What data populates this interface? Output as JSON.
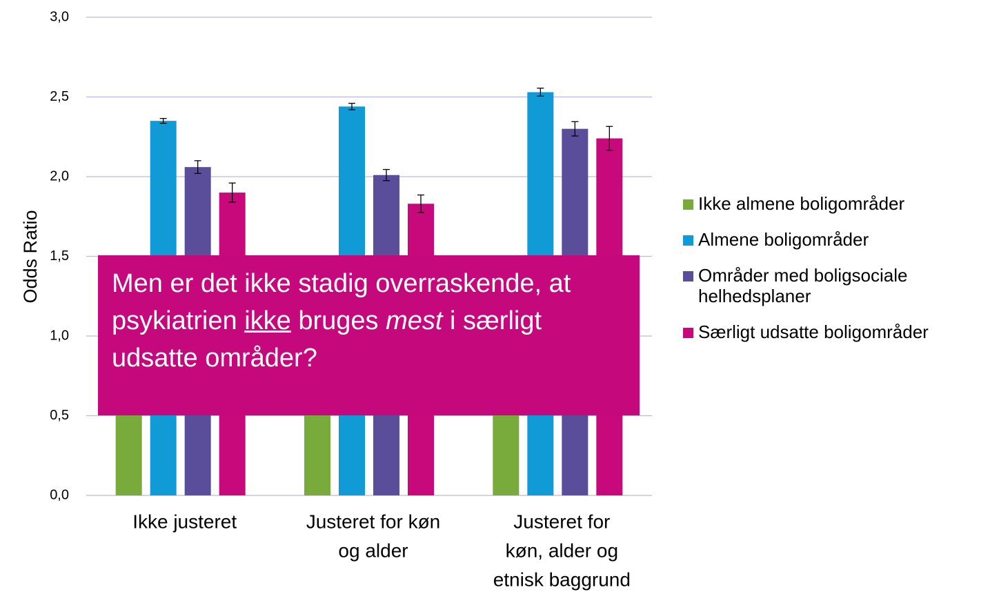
{
  "chart_data": {
    "type": "bar",
    "y_label": "Odds Ratio",
    "categories": [
      [
        "Ikke justeret"
      ],
      [
        "Justeret for køn",
        "og alder"
      ],
      [
        "Justeret for",
        "køn, alder og",
        "etnisk baggrund"
      ]
    ],
    "series": [
      {
        "name": "Ikke almene boligområder",
        "color": "#78ab3c",
        "values": [
          1.0,
          1.0,
          1.0
        ]
      },
      {
        "name": "Almene boligområder",
        "color": "#119bd6",
        "values": [
          2.35,
          2.44,
          2.53
        ],
        "errors": [
          0.015,
          0.02,
          0.025
        ]
      },
      {
        "name": "Områder med boligsociale helhedsplaner",
        "color": "#5a4e9a",
        "values": [
          2.06,
          2.01,
          2.3
        ],
        "errors": [
          0.04,
          0.035,
          0.045
        ]
      },
      {
        "name": "Særligt udsatte boligområder",
        "color": "#c8097c",
        "values": [
          1.9,
          1.83,
          2.24
        ],
        "errors": [
          0.06,
          0.055,
          0.075
        ]
      }
    ],
    "ylim": [
      0,
      3
    ],
    "yticks": [
      {
        "value": 0,
        "label": "0,0"
      },
      {
        "value": 0.5,
        "label": "0,5"
      },
      {
        "value": 1,
        "label": "1,0"
      },
      {
        "value": 1.5,
        "label": "1,5"
      },
      {
        "value": 2,
        "label": "2,0"
      },
      {
        "value": 2.5,
        "label": "2,5"
      },
      {
        "value": 3,
        "label": "3,0"
      }
    ],
    "grid": true,
    "annotation": [
      "Men er det ikke stadig overraskende, at psykiatrien ",
      "ikke",
      " bruges ",
      "mest",
      " i særligt udsatte områder?"
    ]
  }
}
